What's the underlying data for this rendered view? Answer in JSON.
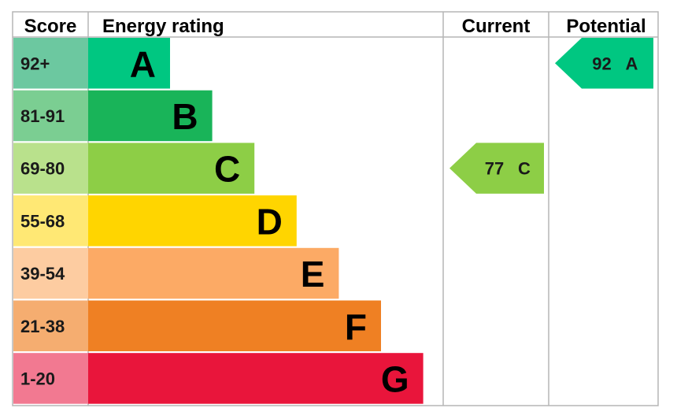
{
  "headers": {
    "score": "Score",
    "rating": "Energy rating",
    "current": "Current",
    "potential": "Potential"
  },
  "chart_data": {
    "type": "bar",
    "title": "",
    "categories": [
      "A",
      "B",
      "C",
      "D",
      "E",
      "F",
      "G"
    ],
    "score_ranges": [
      "92+",
      "81-91",
      "69-80",
      "55-68",
      "39-54",
      "21-38",
      "1-20"
    ],
    "bands": [
      {
        "letter": "A",
        "range": "92+",
        "color": "#00c781",
        "score_color": "#6cc8a0"
      },
      {
        "letter": "B",
        "range": "81-91",
        "color": "#19b459",
        "score_color": "#7bce92"
      },
      {
        "letter": "C",
        "range": "69-80",
        "color": "#8dce46",
        "score_color": "#b9e18c"
      },
      {
        "letter": "D",
        "range": "55-68",
        "color": "#ffd500",
        "score_color": "#ffe874"
      },
      {
        "letter": "E",
        "range": "39-54",
        "color": "#fcaa65",
        "score_color": "#fdcca1"
      },
      {
        "letter": "F",
        "range": "21-38",
        "color": "#ef8023",
        "score_color": "#f5ad70"
      },
      {
        "letter": "G",
        "range": "1-20",
        "color": "#e9153b",
        "score_color": "#f27991"
      }
    ],
    "current": {
      "value": 77,
      "letter": "C",
      "color": "#8dce46"
    },
    "potential": {
      "value": 92,
      "letter": "A",
      "color": "#00c781"
    }
  }
}
